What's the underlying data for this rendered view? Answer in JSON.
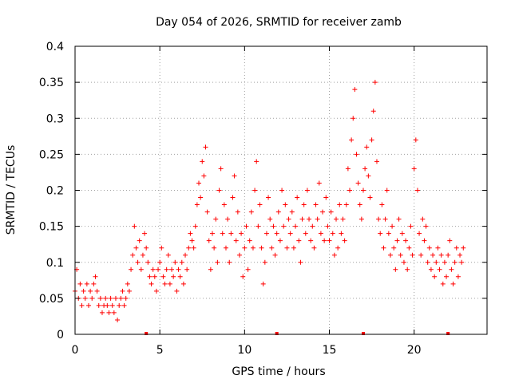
{
  "chart_data": {
    "type": "scatter",
    "title": "Day 054 of 2026, SRMTID for receiver zamb",
    "xlabel": "GPS time / hours",
    "ylabel": "SRMTID / TECUs",
    "xlim": [
      0,
      24.3
    ],
    "ylim": [
      0,
      0.4
    ],
    "x_ticks": [
      0,
      5,
      10,
      15,
      20
    ],
    "x_tick_labels": [
      "0",
      "5",
      "10",
      "15",
      "20"
    ],
    "y_ticks": [
      0,
      0.05,
      0.1,
      0.15,
      0.2,
      0.25,
      0.3,
      0.35,
      0.4
    ],
    "y_tick_labels": [
      "0",
      "0.05",
      "0.1",
      "0.15",
      "0.2",
      "0.25",
      "0.3",
      "0.35",
      "0.4"
    ],
    "grid": true,
    "marker": "+",
    "series_color": "#ff0000",
    "series": [
      {
        "name": "SRMTID",
        "points": [
          [
            0.0,
            0.06
          ],
          [
            0.1,
            0.09
          ],
          [
            0.2,
            0.05
          ],
          [
            0.3,
            0.07
          ],
          [
            0.4,
            0.04
          ],
          [
            0.5,
            0.06
          ],
          [
            0.6,
            0.05
          ],
          [
            0.7,
            0.07
          ],
          [
            0.8,
            0.04
          ],
          [
            0.9,
            0.06
          ],
          [
            1.0,
            0.05
          ],
          [
            1.1,
            0.07
          ],
          [
            1.2,
            0.08
          ],
          [
            1.3,
            0.06
          ],
          [
            1.4,
            0.04
          ],
          [
            1.5,
            0.05
          ],
          [
            1.6,
            0.03
          ],
          [
            1.7,
            0.04
          ],
          [
            1.8,
            0.05
          ],
          [
            1.9,
            0.04
          ],
          [
            2.0,
            0.03
          ],
          [
            2.1,
            0.05
          ],
          [
            2.2,
            0.04
          ],
          [
            2.3,
            0.03
          ],
          [
            2.4,
            0.05
          ],
          [
            2.5,
            0.02
          ],
          [
            2.6,
            0.04
          ],
          [
            2.7,
            0.05
          ],
          [
            2.8,
            0.06
          ],
          [
            2.9,
            0.04
          ],
          [
            3.0,
            0.05
          ],
          [
            3.1,
            0.07
          ],
          [
            3.2,
            0.06
          ],
          [
            3.3,
            0.09
          ],
          [
            3.4,
            0.11
          ],
          [
            3.5,
            0.15
          ],
          [
            3.6,
            0.12
          ],
          [
            3.7,
            0.1
          ],
          [
            3.8,
            0.13
          ],
          [
            3.9,
            0.09
          ],
          [
            4.0,
            0.11
          ],
          [
            4.1,
            0.14
          ],
          [
            4.2,
            0.12
          ],
          [
            4.3,
            0.1
          ],
          [
            4.4,
            0.08
          ],
          [
            4.5,
            0.07
          ],
          [
            4.6,
            0.09
          ],
          [
            4.7,
            0.08
          ],
          [
            4.8,
            0.06
          ],
          [
            4.9,
            0.09
          ],
          [
            5.0,
            0.1
          ],
          [
            5.1,
            0.12
          ],
          [
            5.2,
            0.08
          ],
          [
            5.3,
            0.07
          ],
          [
            5.4,
            0.09
          ],
          [
            5.5,
            0.11
          ],
          [
            5.6,
            0.07
          ],
          [
            5.7,
            0.09
          ],
          [
            5.8,
            0.08
          ],
          [
            5.9,
            0.1
          ],
          [
            6.0,
            0.06
          ],
          [
            6.1,
            0.09
          ],
          [
            6.2,
            0.08
          ],
          [
            6.3,
            0.1
          ],
          [
            6.4,
            0.07
          ],
          [
            6.5,
            0.11
          ],
          [
            6.6,
            0.09
          ],
          [
            6.7,
            0.12
          ],
          [
            6.8,
            0.14
          ],
          [
            6.9,
            0.13
          ],
          [
            7.0,
            0.12
          ],
          [
            7.1,
            0.15
          ],
          [
            7.2,
            0.18
          ],
          [
            7.3,
            0.21
          ],
          [
            7.4,
            0.19
          ],
          [
            7.5,
            0.24
          ],
          [
            7.6,
            0.22
          ],
          [
            7.7,
            0.26
          ],
          [
            7.8,
            0.17
          ],
          [
            7.9,
            0.13
          ],
          [
            8.0,
            0.09
          ],
          [
            8.1,
            0.14
          ],
          [
            8.2,
            0.12
          ],
          [
            8.3,
            0.16
          ],
          [
            8.4,
            0.1
          ],
          [
            8.5,
            0.2
          ],
          [
            8.6,
            0.23
          ],
          [
            8.7,
            0.14
          ],
          [
            8.8,
            0.18
          ],
          [
            8.9,
            0.12
          ],
          [
            9.0,
            0.16
          ],
          [
            9.1,
            0.1
          ],
          [
            9.2,
            0.14
          ],
          [
            9.3,
            0.19
          ],
          [
            9.4,
            0.22
          ],
          [
            9.5,
            0.13
          ],
          [
            9.6,
            0.17
          ],
          [
            9.7,
            0.11
          ],
          [
            9.8,
            0.14
          ],
          [
            9.9,
            0.08
          ],
          [
            10.0,
            0.12
          ],
          [
            10.1,
            0.15
          ],
          [
            10.2,
            0.09
          ],
          [
            10.3,
            0.13
          ],
          [
            10.4,
            0.17
          ],
          [
            10.5,
            0.12
          ],
          [
            10.6,
            0.2
          ],
          [
            10.7,
            0.24
          ],
          [
            10.8,
            0.15
          ],
          [
            10.9,
            0.18
          ],
          [
            11.0,
            0.12
          ],
          [
            11.1,
            0.07
          ],
          [
            11.2,
            0.1
          ],
          [
            11.3,
            0.14
          ],
          [
            11.4,
            0.19
          ],
          [
            11.5,
            0.16
          ],
          [
            11.6,
            0.12
          ],
          [
            11.7,
            0.15
          ],
          [
            11.8,
            0.11
          ],
          [
            11.9,
            0.14
          ],
          [
            12.0,
            0.17
          ],
          [
            12.1,
            0.13
          ],
          [
            12.2,
            0.2
          ],
          [
            12.3,
            0.15
          ],
          [
            12.4,
            0.18
          ],
          [
            12.5,
            0.12
          ],
          [
            12.6,
            0.16
          ],
          [
            12.7,
            0.14
          ],
          [
            12.8,
            0.17
          ],
          [
            12.9,
            0.12
          ],
          [
            13.0,
            0.15
          ],
          [
            13.1,
            0.19
          ],
          [
            13.2,
            0.13
          ],
          [
            13.3,
            0.1
          ],
          [
            13.4,
            0.16
          ],
          [
            13.5,
            0.18
          ],
          [
            13.6,
            0.14
          ],
          [
            13.7,
            0.2
          ],
          [
            13.8,
            0.16
          ],
          [
            13.9,
            0.13
          ],
          [
            14.0,
            0.15
          ],
          [
            14.1,
            0.12
          ],
          [
            14.2,
            0.18
          ],
          [
            14.3,
            0.16
          ],
          [
            14.4,
            0.21
          ],
          [
            14.5,
            0.14
          ],
          [
            14.6,
            0.17
          ],
          [
            14.7,
            0.13
          ],
          [
            14.8,
            0.19
          ],
          [
            14.9,
            0.15
          ],
          [
            15.0,
            0.13
          ],
          [
            15.1,
            0.17
          ],
          [
            15.2,
            0.14
          ],
          [
            15.3,
            0.11
          ],
          [
            15.4,
            0.16
          ],
          [
            15.5,
            0.12
          ],
          [
            15.6,
            0.18
          ],
          [
            15.7,
            0.14
          ],
          [
            15.8,
            0.16
          ],
          [
            15.9,
            0.13
          ],
          [
            16.0,
            0.18
          ],
          [
            16.1,
            0.23
          ],
          [
            16.2,
            0.2
          ],
          [
            16.3,
            0.27
          ],
          [
            16.4,
            0.3
          ],
          [
            16.5,
            0.34
          ],
          [
            16.6,
            0.25
          ],
          [
            16.7,
            0.21
          ],
          [
            16.8,
            0.18
          ],
          [
            16.9,
            0.16
          ],
          [
            17.0,
            0.2
          ],
          [
            17.1,
            0.23
          ],
          [
            17.2,
            0.26
          ],
          [
            17.3,
            0.22
          ],
          [
            17.4,
            0.19
          ],
          [
            17.5,
            0.27
          ],
          [
            17.6,
            0.31
          ],
          [
            17.7,
            0.35
          ],
          [
            17.8,
            0.24
          ],
          [
            17.9,
            0.16
          ],
          [
            18.0,
            0.14
          ],
          [
            18.1,
            0.18
          ],
          [
            18.2,
            0.12
          ],
          [
            18.3,
            0.16
          ],
          [
            18.4,
            0.2
          ],
          [
            18.5,
            0.14
          ],
          [
            18.6,
            0.11
          ],
          [
            18.7,
            0.15
          ],
          [
            18.8,
            0.12
          ],
          [
            18.9,
            0.09
          ],
          [
            19.0,
            0.13
          ],
          [
            19.1,
            0.16
          ],
          [
            19.2,
            0.11
          ],
          [
            19.3,
            0.14
          ],
          [
            19.4,
            0.1
          ],
          [
            19.5,
            0.13
          ],
          [
            19.6,
            0.09
          ],
          [
            19.7,
            0.12
          ],
          [
            19.8,
            0.15
          ],
          [
            19.9,
            0.11
          ],
          [
            20.0,
            0.23
          ],
          [
            20.1,
            0.27
          ],
          [
            20.2,
            0.2
          ],
          [
            20.3,
            0.14
          ],
          [
            20.4,
            0.11
          ],
          [
            20.5,
            0.16
          ],
          [
            20.6,
            0.13
          ],
          [
            20.7,
            0.15
          ],
          [
            20.8,
            0.1
          ],
          [
            20.9,
            0.12
          ],
          [
            21.0,
            0.09
          ],
          [
            21.1,
            0.11
          ],
          [
            21.2,
            0.08
          ],
          [
            21.3,
            0.1
          ],
          [
            21.4,
            0.12
          ],
          [
            21.5,
            0.09
          ],
          [
            21.6,
            0.11
          ],
          [
            21.7,
            0.07
          ],
          [
            21.8,
            0.1
          ],
          [
            21.9,
            0.08
          ],
          [
            22.0,
            0.11
          ],
          [
            22.1,
            0.13
          ],
          [
            22.2,
            0.09
          ],
          [
            22.3,
            0.07
          ],
          [
            22.4,
            0.1
          ],
          [
            22.5,
            0.12
          ],
          [
            22.6,
            0.08
          ],
          [
            22.7,
            0.11
          ],
          [
            22.8,
            0.1
          ],
          [
            22.9,
            0.12
          ]
        ]
      }
    ],
    "gap_markers_x": [
      4.2,
      11.9,
      17.0,
      22.0
    ]
  }
}
